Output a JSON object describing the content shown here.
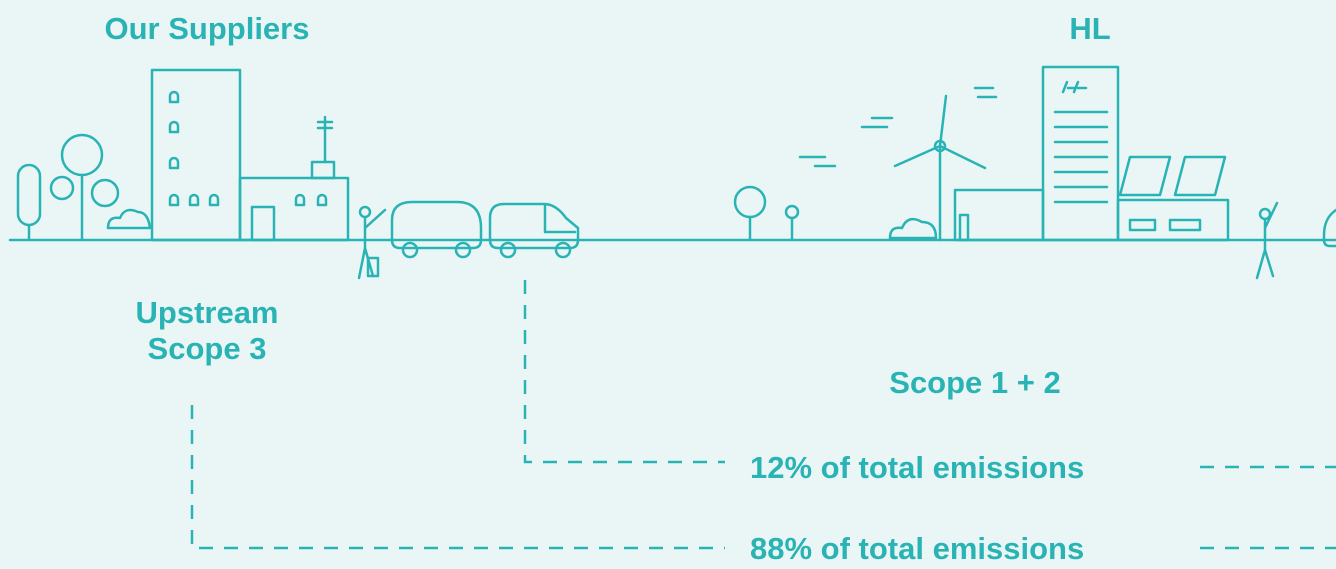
{
  "labels": {
    "suppliers": "Our Suppliers",
    "company": "HL",
    "upstream": [
      "Upstream",
      "Scope 3"
    ],
    "scope12": "Scope 1 + 2"
  },
  "emissions": [
    "12% of total emissions",
    "88% of total emissions"
  ]
}
